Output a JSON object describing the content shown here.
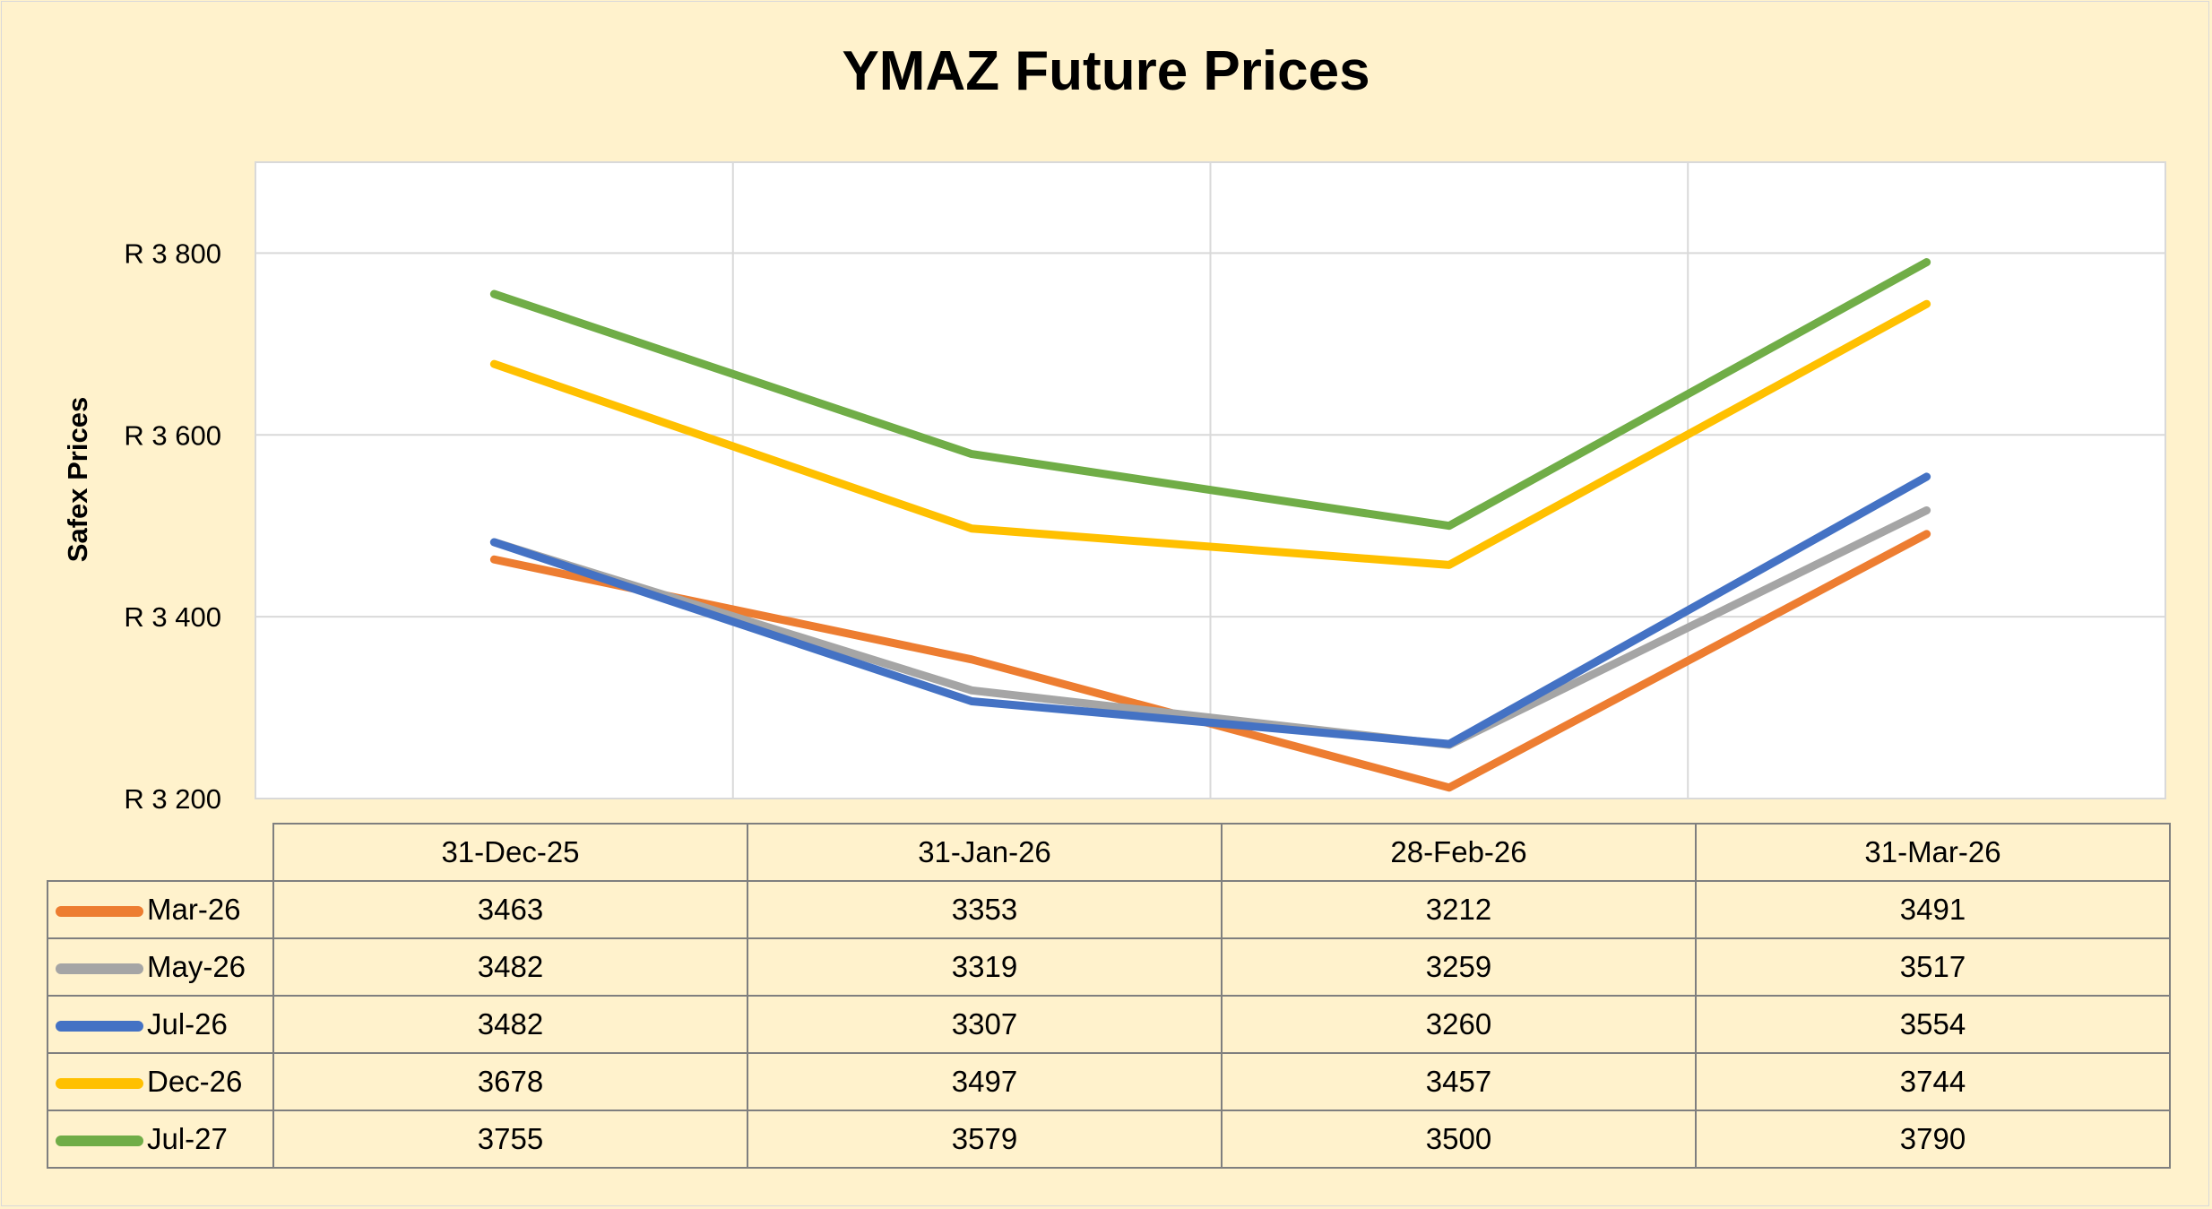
{
  "chart_data": {
    "type": "line",
    "title": "YMAZ Future Prices",
    "xlabel": "",
    "ylabel": "Safex Prices",
    "categories": [
      "31-Dec-25",
      "31-Jan-26",
      "28-Feb-26",
      "31-Mar-26"
    ],
    "ylim": [
      3200,
      3900
    ],
    "yticks": [
      3200,
      3400,
      3600,
      3800
    ],
    "ytick_labels": [
      "R 3 200",
      "R 3 400",
      "R 3 600",
      "R 3 800"
    ],
    "grid": true,
    "legend": "data-table-below",
    "series": [
      {
        "name": "Mar-26",
        "color": "#ed7d31",
        "values": [
          3463,
          3353,
          3212,
          3491
        ]
      },
      {
        "name": "May-26",
        "color": "#a5a5a5",
        "values": [
          3482,
          3319,
          3259,
          3517
        ]
      },
      {
        "name": "Jul-26",
        "color": "#4472c4",
        "values": [
          3482,
          3307,
          3260,
          3554
        ]
      },
      {
        "name": "Dec-26",
        "color": "#ffc000",
        "values": [
          3678,
          3497,
          3457,
          3744
        ]
      },
      {
        "name": "Jul-27",
        "color": "#70ad47",
        "values": [
          3755,
          3579,
          3500,
          3790
        ]
      }
    ]
  }
}
